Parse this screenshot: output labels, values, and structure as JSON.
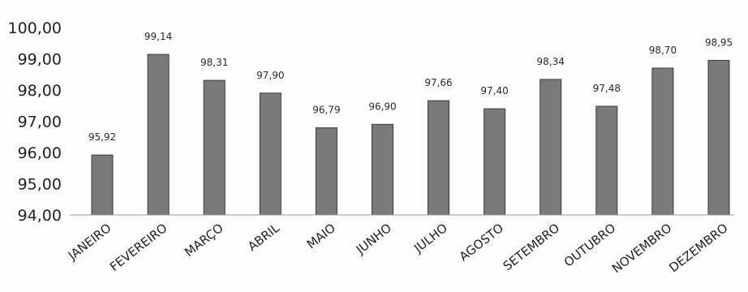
{
  "chart_data": {
    "type": "bar",
    "title": "",
    "xlabel": "",
    "ylabel": "",
    "categories": [
      "JANEIRO",
      "FEVEREIRO",
      "MARÇO",
      "ABRIL",
      "MAIO",
      "JUNHO",
      "JULHO",
      "AGOSTO",
      "SETEMBRO",
      "OUTUBRO",
      "NOVEMBRO",
      "DEZEMBRO"
    ],
    "values": [
      95.92,
      99.14,
      98.31,
      97.9,
      96.79,
      96.9,
      97.66,
      97.4,
      98.34,
      97.48,
      98.7,
      98.95
    ],
    "value_labels": [
      "95,92",
      "99,14",
      "98,31",
      "97,90",
      "96,79",
      "96,90",
      "97,66",
      "97,40",
      "98,34",
      "97,48",
      "98,70",
      "98,95"
    ],
    "ylim": [
      94,
      100
    ],
    "yticks": [
      94,
      95,
      96,
      97,
      98,
      99,
      100
    ],
    "ytick_labels": [
      "94,00",
      "95,00",
      "96,00",
      "97,00",
      "98,00",
      "99,00",
      "100,00"
    ],
    "grid": false,
    "legend": "none",
    "bar_color": "#7a7a7a",
    "axis_color": "#9a9a9a"
  }
}
